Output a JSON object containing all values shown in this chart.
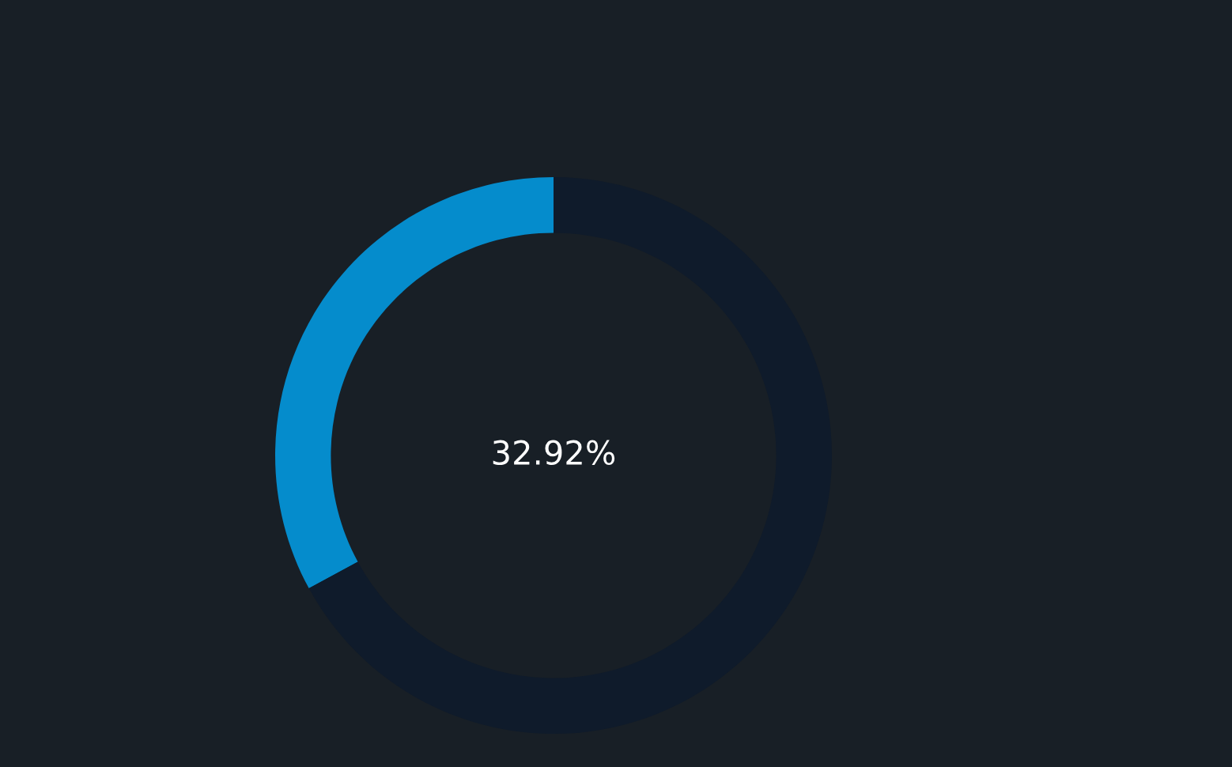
{
  "chart_data": {
    "type": "donut",
    "categories": [
      null,
      null
    ],
    "values": [
      32.92,
      67.08
    ],
    "colors": [
      "#058ccc",
      "#0f1b2b"
    ],
    "annotations": [
      "32.92%"
    ]
  }
}
